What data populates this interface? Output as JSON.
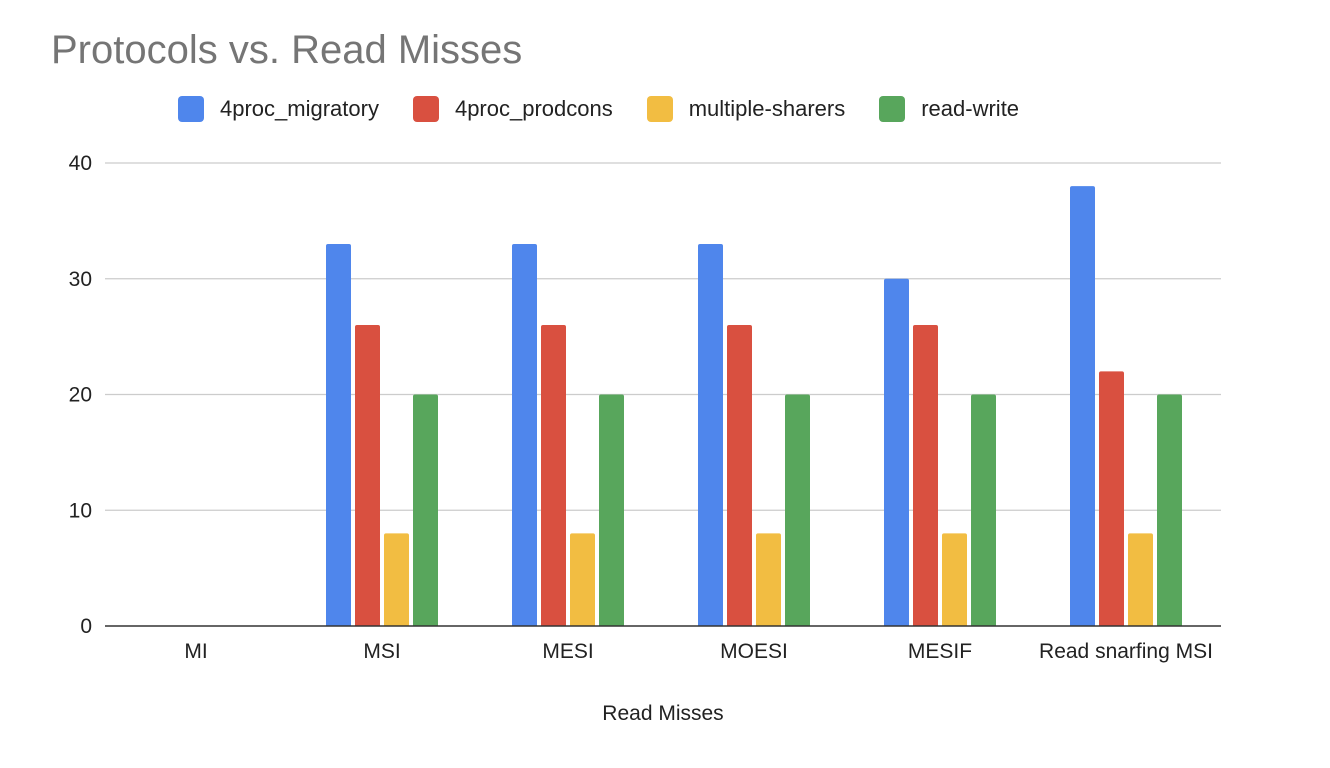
{
  "chart_data": {
    "type": "bar",
    "title": "Protocols vs. Read Misses",
    "xlabel": "Read Misses",
    "ylabel": "",
    "ylim": [
      0,
      40
    ],
    "yticks": [
      0,
      10,
      20,
      30,
      40
    ],
    "grid": true,
    "legend_position": "top",
    "categories": [
      "MI",
      "MSI",
      "MESI",
      "MOESI",
      "MESIF",
      "Read snarfing MSI"
    ],
    "series": [
      {
        "name": "4proc_migratory",
        "color": "#4f86ec",
        "values": [
          0,
          33,
          33,
          33,
          30,
          38
        ]
      },
      {
        "name": "4proc_prodcons",
        "color": "#d95040",
        "values": [
          0,
          26,
          26,
          26,
          26,
          22
        ]
      },
      {
        "name": "multiple-sharers",
        "color": "#f2bd42",
        "values": [
          0,
          8,
          8,
          8,
          8,
          8
        ]
      },
      {
        "name": "read-write",
        "color": "#58a65c",
        "values": [
          0,
          20,
          20,
          20,
          20,
          20
        ]
      }
    ]
  }
}
